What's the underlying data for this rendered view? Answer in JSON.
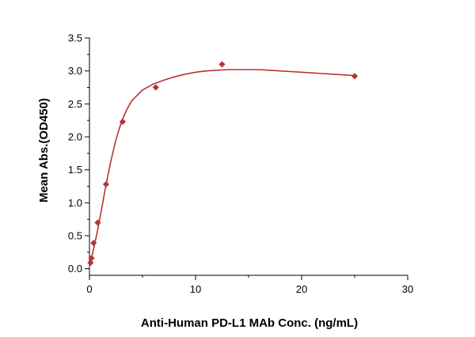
{
  "chart_data": {
    "type": "scatter",
    "title": "",
    "xlabel": "Anti-Human PD-L1 MAb Conc. (ng/mL)",
    "ylabel": "Mean Abs.(OD450)",
    "xlim": [
      0,
      30
    ],
    "ylim": [
      -0.1,
      3.5
    ],
    "x_ticks": [
      0,
      10,
      20,
      30
    ],
    "x_tick_labels": [
      "0",
      "10",
      "20",
      "30"
    ],
    "y_ticks": [
      0.0,
      0.5,
      1.0,
      1.5,
      2.0,
      2.5,
      3.0,
      3.5
    ],
    "y_tick_labels": [
      "0.0",
      "0.5",
      "1.0",
      "1.5",
      "2.0",
      "2.5",
      "3.0",
      "3.5"
    ],
    "grid": false,
    "series": [
      {
        "name": "Anti-Human PD-L1 MAb",
        "marker": "diamond",
        "color": "#b83232",
        "x": [
          0.098,
          0.195,
          0.391,
          0.781,
          1.5625,
          3.125,
          6.25,
          12.5,
          25
        ],
        "y": [
          0.09,
          0.16,
          0.39,
          0.7,
          1.28,
          2.23,
          2.75,
          3.1,
          2.92
        ]
      }
    ],
    "fit_curve": {
      "color": "#b83232",
      "x": [
        0,
        0.25,
        0.5,
        0.75,
        1,
        1.5,
        2,
        2.5,
        3,
        3.5,
        4,
        5,
        6,
        7,
        8,
        9,
        10,
        11,
        12,
        13,
        14,
        15,
        16,
        17,
        18,
        19,
        20,
        21,
        22,
        23,
        24,
        25
      ],
      "y": [
        0.04,
        0.2,
        0.38,
        0.57,
        0.78,
        1.22,
        1.62,
        1.96,
        2.22,
        2.41,
        2.55,
        2.71,
        2.8,
        2.86,
        2.91,
        2.95,
        2.98,
        3.0,
        3.01,
        3.02,
        3.02,
        3.02,
        3.02,
        3.01,
        3.0,
        2.99,
        2.98,
        2.97,
        2.96,
        2.95,
        2.94,
        2.93
      ]
    }
  }
}
